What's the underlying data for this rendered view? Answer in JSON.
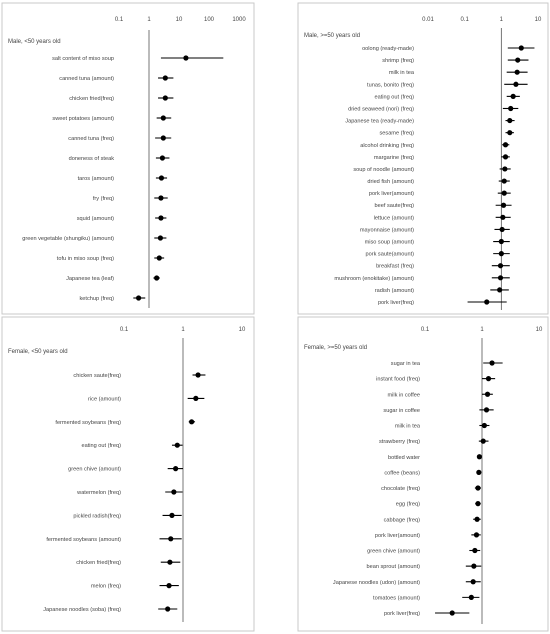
{
  "chart_data": [
    {
      "type": "scatter",
      "title": "Male, <50 years old",
      "xscale": "log",
      "xticks": [
        0.1,
        1,
        10,
        100,
        1000
      ],
      "xtick_labels": [
        "0.1",
        "1",
        "10",
        "100",
        "1000"
      ],
      "xlim": [
        0.1,
        1000
      ],
      "reference_line": 1,
      "points": [
        {
          "label": "salt content of miso soup",
          "or": 17,
          "lo": 2.5,
          "hi": 300
        },
        {
          "label": "canned tuna (amount)",
          "or": 3.5,
          "lo": 2.0,
          "hi": 6.5
        },
        {
          "label": "chicken fried(freq)",
          "or": 3.5,
          "lo": 2.0,
          "hi": 6.5
        },
        {
          "label": "sweet potatoes (amount)",
          "or": 3.0,
          "lo": 1.8,
          "hi": 5.5
        },
        {
          "label": "canned tuna (freq)",
          "or": 3.0,
          "lo": 1.6,
          "hi": 5.5
        },
        {
          "label": "doneness of steak",
          "or": 2.8,
          "lo": 1.7,
          "hi": 4.8
        },
        {
          "label": "taros (amount)",
          "or": 2.6,
          "lo": 1.7,
          "hi": 4.0
        },
        {
          "label": "fry (freq)",
          "or": 2.5,
          "lo": 1.5,
          "hi": 4.2
        },
        {
          "label": "squid (amount)",
          "or": 2.5,
          "lo": 1.6,
          "hi": 3.8
        },
        {
          "label": "green vegetable (shungiku) (amount)",
          "or": 2.4,
          "lo": 1.5,
          "hi": 3.8
        },
        {
          "label": "tofu in miso soup (freq)",
          "or": 2.2,
          "lo": 1.5,
          "hi": 3.2
        },
        {
          "label": "Japanese tea (leaf)",
          "or": 1.8,
          "lo": 1.4,
          "hi": 2.3
        },
        {
          "label": "ketchup (freq)",
          "or": 0.45,
          "lo": 0.3,
          "hi": 0.75
        }
      ]
    },
    {
      "type": "scatter",
      "title": "Male, >=50 years old",
      "xscale": "log",
      "xticks": [
        0.01,
        0.1,
        1,
        10
      ],
      "xtick_labels": [
        "0.01",
        "0.1",
        "1",
        "10"
      ],
      "xlim": [
        0.01,
        10
      ],
      "reference_line": 1,
      "points": [
        {
          "label": "oolong (ready-made)",
          "or": 3.5,
          "lo": 1.5,
          "hi": 8.0
        },
        {
          "label": "shrimp (freq)",
          "or": 2.8,
          "lo": 1.5,
          "hi": 5.5
        },
        {
          "label": "milk in tea",
          "or": 2.7,
          "lo": 1.4,
          "hi": 5.2
        },
        {
          "label": "tunas, bonito (freq)",
          "or": 2.5,
          "lo": 1.2,
          "hi": 5.2
        },
        {
          "label": "eating out (freq)",
          "or": 2.1,
          "lo": 1.4,
          "hi": 3.2
        },
        {
          "label": "dried seaweed (nori) (freq)",
          "or": 1.8,
          "lo": 1.1,
          "hi": 2.9
        },
        {
          "label": "Japanese tea (ready-made)",
          "or": 1.7,
          "lo": 1.3,
          "hi": 2.3
        },
        {
          "label": "sesame (freq)",
          "or": 1.7,
          "lo": 1.3,
          "hi": 2.2
        },
        {
          "label": "alcohol drinking (freq)",
          "or": 1.3,
          "lo": 1.05,
          "hi": 1.65
        },
        {
          "label": "margarine (freq)",
          "or": 1.3,
          "lo": 1.0,
          "hi": 1.7
        },
        {
          "label": "soup of noodle (amount)",
          "or": 1.25,
          "lo": 0.9,
          "hi": 1.8
        },
        {
          "label": "dried fish (amount)",
          "or": 1.2,
          "lo": 0.85,
          "hi": 1.7
        },
        {
          "label": "pork liver(amount)",
          "or": 1.2,
          "lo": 0.8,
          "hi": 1.8
        },
        {
          "label": "beef saute(freq)",
          "or": 1.15,
          "lo": 0.7,
          "hi": 1.9
        },
        {
          "label": "lettuce (amount)",
          "or": 1.1,
          "lo": 0.7,
          "hi": 1.8
        },
        {
          "label": "mayonnaise (amount)",
          "or": 1.05,
          "lo": 0.65,
          "hi": 1.7
        },
        {
          "label": "miso soup (amount)",
          "or": 1.0,
          "lo": 0.6,
          "hi": 1.7
        },
        {
          "label": "pork saute(amount)",
          "or": 1.0,
          "lo": 0.6,
          "hi": 1.7
        },
        {
          "label": "breakfast (freq)",
          "or": 0.95,
          "lo": 0.55,
          "hi": 1.7
        },
        {
          "label": "mushroom (enokitake) (amount)",
          "or": 0.95,
          "lo": 0.55,
          "hi": 1.7
        },
        {
          "label": "radish (amount)",
          "or": 0.9,
          "lo": 0.5,
          "hi": 1.6
        },
        {
          "label": "pork liver(freq)",
          "or": 0.4,
          "lo": 0.12,
          "hi": 1.4
        }
      ]
    },
    {
      "type": "scatter",
      "title": "Female, <50 years old",
      "xscale": "log",
      "xticks": [
        0.1,
        1,
        10
      ],
      "xtick_labels": [
        "0.1",
        "1",
        "10"
      ],
      "xlim": [
        0.1,
        10
      ],
      "reference_line": 1,
      "points": [
        {
          "label": "chicken saute(freq)",
          "or": 1.8,
          "lo": 1.45,
          "hi": 2.4
        },
        {
          "label": "rice (amount)",
          "or": 1.65,
          "lo": 1.2,
          "hi": 2.3
        },
        {
          "label": "fermented soybeans (freq)",
          "or": 1.4,
          "lo": 1.25,
          "hi": 1.6
        },
        {
          "label": "eating out (freq)",
          "or": 0.8,
          "lo": 0.65,
          "hi": 0.98
        },
        {
          "label": "green chive (amount)",
          "or": 0.75,
          "lo": 0.55,
          "hi": 1.0
        },
        {
          "label": "watermelon (freq)",
          "or": 0.7,
          "lo": 0.5,
          "hi": 0.98
        },
        {
          "label": "pickled radish(freq)",
          "or": 0.65,
          "lo": 0.45,
          "hi": 0.95
        },
        {
          "label": "fermented soybeans (amount)",
          "or": 0.62,
          "lo": 0.4,
          "hi": 0.95
        },
        {
          "label": "chicken fried(freq)",
          "or": 0.6,
          "lo": 0.42,
          "hi": 0.9
        },
        {
          "label": "melon (freq)",
          "or": 0.58,
          "lo": 0.4,
          "hi": 0.85
        },
        {
          "label": "Japanese noodles (soba) (freq)",
          "or": 0.55,
          "lo": 0.38,
          "hi": 0.8
        }
      ]
    },
    {
      "type": "scatter",
      "title": "Female, >=50 years old",
      "xscale": "log",
      "xticks": [
        0.1,
        1,
        10
      ],
      "xtick_labels": [
        "0.1",
        "1",
        "10"
      ],
      "xlim": [
        0.1,
        10
      ],
      "reference_line": 1,
      "points": [
        {
          "label": "sugar in tea",
          "or": 1.5,
          "lo": 1.05,
          "hi": 2.3
        },
        {
          "label": "instant food (freq)",
          "or": 1.3,
          "lo": 1.0,
          "hi": 1.7
        },
        {
          "label": "milk in coffee",
          "or": 1.25,
          "lo": 1.0,
          "hi": 1.55
        },
        {
          "label": "sugar in coffee",
          "or": 1.2,
          "lo": 0.9,
          "hi": 1.6
        },
        {
          "label": "milk in tea",
          "or": 1.1,
          "lo": 0.9,
          "hi": 1.35
        },
        {
          "label": "strawberry (freq)",
          "or": 1.05,
          "lo": 0.88,
          "hi": 1.3
        },
        {
          "label": "bottled water",
          "or": 0.9,
          "lo": 0.86,
          "hi": 0.94
        },
        {
          "label": "coffee (beans)",
          "or": 0.88,
          "lo": 0.84,
          "hi": 0.92
        },
        {
          "label": "chocolate (freq)",
          "or": 0.85,
          "lo": 0.75,
          "hi": 0.96
        },
        {
          "label": "egg (freq)",
          "or": 0.85,
          "lo": 0.76,
          "hi": 0.95
        },
        {
          "label": "cabbage (freq)",
          "or": 0.82,
          "lo": 0.7,
          "hi": 0.95
        },
        {
          "label": "pork liver(amount)",
          "or": 0.8,
          "lo": 0.65,
          "hi": 0.95
        },
        {
          "label": "green chive (amount)",
          "or": 0.75,
          "lo": 0.6,
          "hi": 0.93
        },
        {
          "label": "bean sprout (amount)",
          "or": 0.72,
          "lo": 0.52,
          "hi": 0.97
        },
        {
          "label": "Japanese noodles (udon) (amount)",
          "or": 0.7,
          "lo": 0.52,
          "hi": 0.95
        },
        {
          "label": "tomatoes (amount)",
          "or": 0.65,
          "lo": 0.45,
          "hi": 0.9
        },
        {
          "label": "pork liver(freq)",
          "or": 0.3,
          "lo": 0.15,
          "hi": 0.6
        }
      ]
    }
  ]
}
